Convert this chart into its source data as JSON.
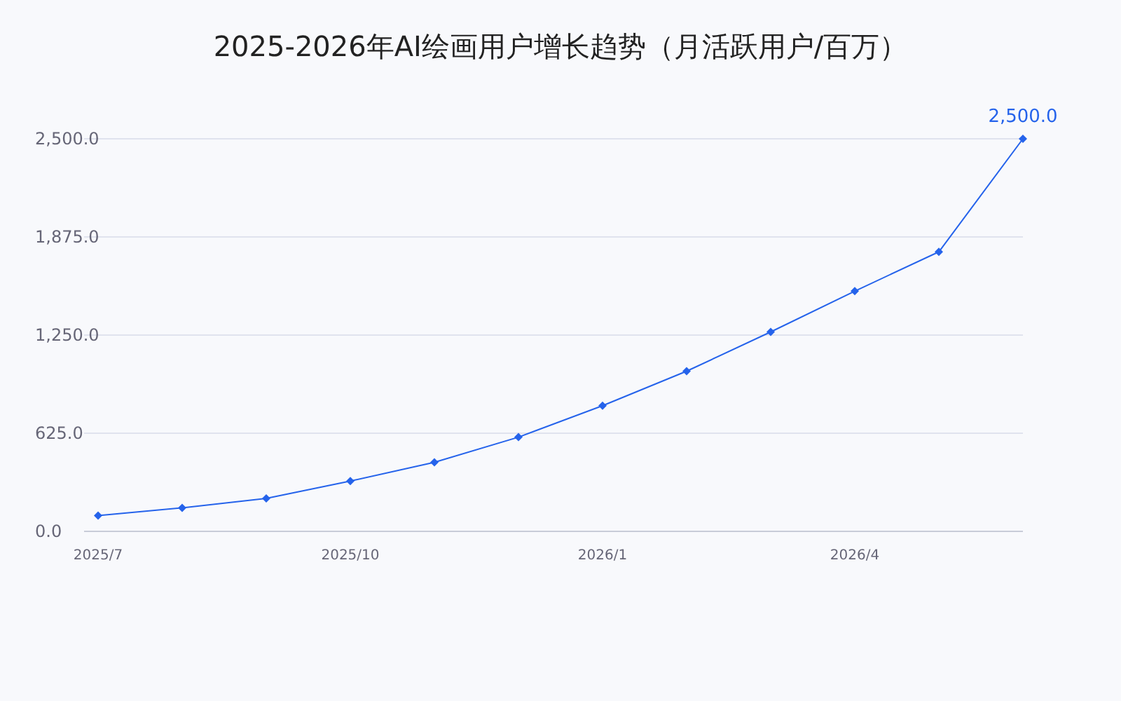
{
  "chart_data": {
    "type": "line",
    "title": "2025-2026年AI绘画用户增长趋势（月活跃用户/百万）",
    "categories": [
      "2025/7",
      null,
      null,
      "2025/10",
      null,
      null,
      "2026/1",
      null,
      null,
      "2026/4",
      null,
      null
    ],
    "series": [
      {
        "color": "#2563eb",
        "values": [
          100,
          150,
          210,
          320,
          440,
          600,
          800,
          1020,
          1270,
          1530,
          1780,
          2500
        ],
        "value_labels": [
          null,
          null,
          null,
          null,
          null,
          null,
          null,
          null,
          null,
          null,
          null,
          "2,500.0"
        ]
      }
    ],
    "ylim": [
      0,
      2500
    ],
    "yticks": [
      {
        "value": 0,
        "label": "0.0"
      },
      {
        "value": 625,
        "label": "625.0"
      },
      {
        "value": 1250,
        "label": "1,250.0"
      },
      {
        "value": 1875,
        "label": "1,875.0"
      },
      {
        "value": 2500,
        "label": "2,500.0"
      }
    ],
    "grid": "y",
    "marker": "diamond",
    "line_style": "solid"
  }
}
